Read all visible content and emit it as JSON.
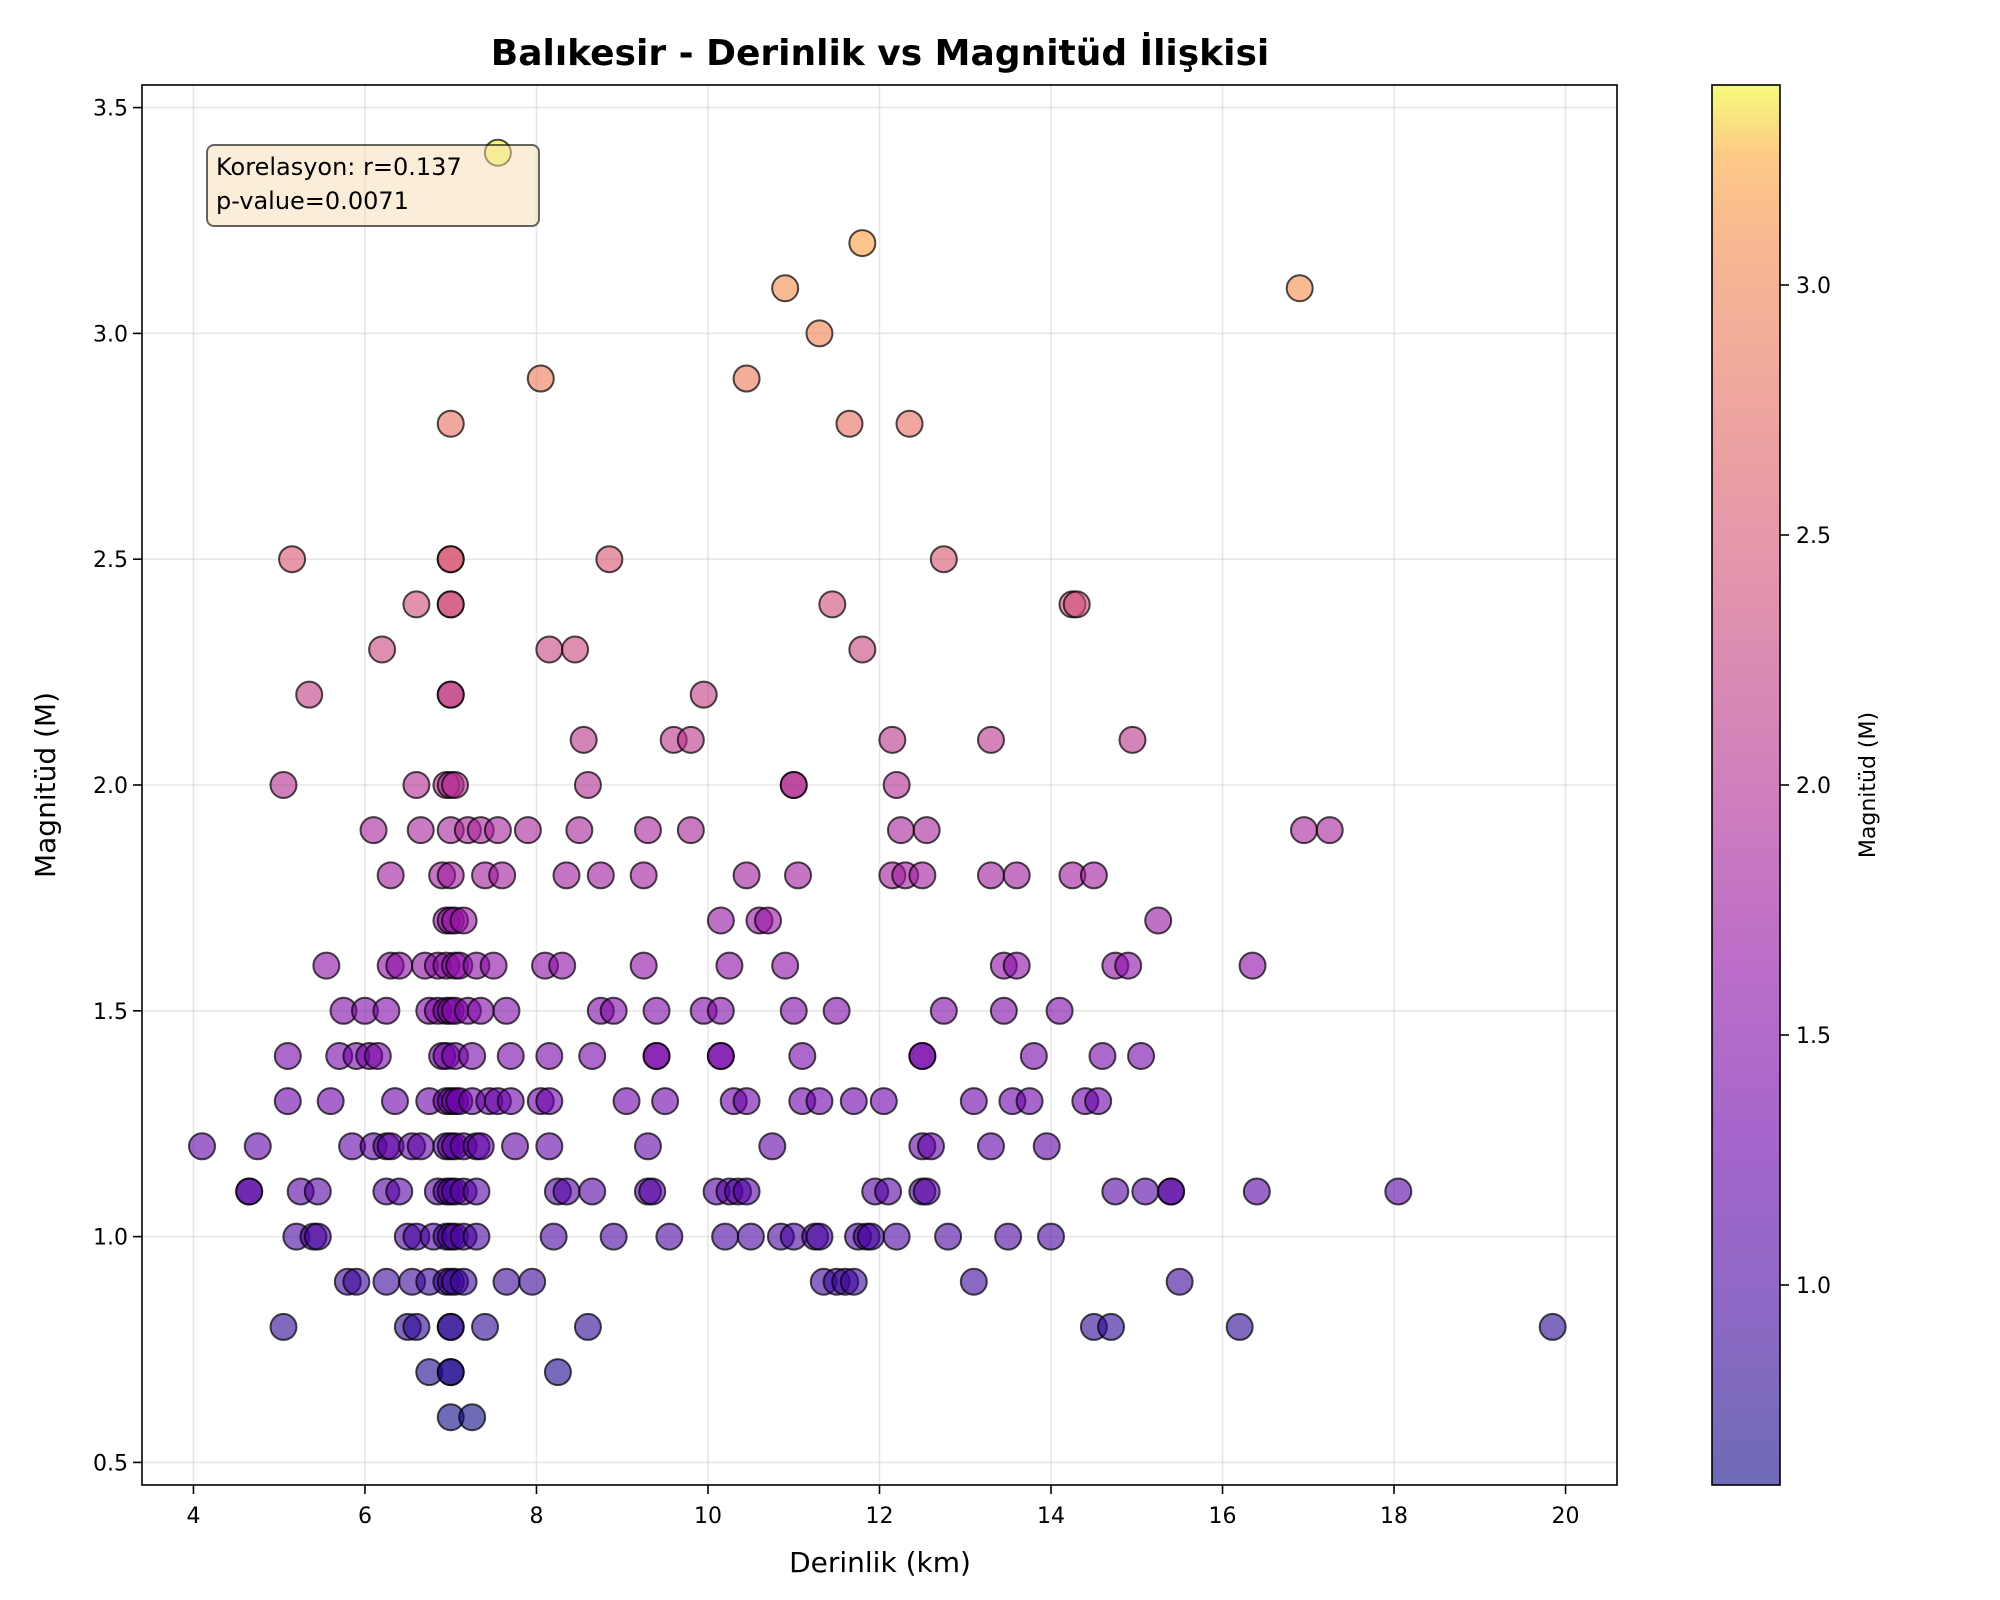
{
  "chart_data": {
    "type": "scatter",
    "title": "Balıkesir - Derinlik vs Magnitüd İlişkisi",
    "xlabel": "Derinlik (km)",
    "ylabel": "Magnitüd (M)",
    "xlim": [
      3.4,
      20.6
    ],
    "ylim": [
      0.45,
      3.55
    ],
    "xticks": [
      "4",
      "6",
      "8",
      "10",
      "12",
      "14",
      "16",
      "18",
      "20"
    ],
    "yticks": [
      "0.5",
      "1.0",
      "1.5",
      "2.0",
      "2.5",
      "3.0",
      "3.5"
    ],
    "grid": true,
    "annotation": [
      "Korelasyon: r=0.137",
      "p-value=0.0071"
    ],
    "annotation_position": "top-left",
    "colorbar": {
      "label": "Magnitüd (M)",
      "colormap": "plasma",
      "range": [
        0.6,
        3.4
      ],
      "ticks": [
        "1.0",
        "1.5",
        "2.0",
        "2.5",
        "3.0"
      ]
    },
    "marker_edge_color": "#000000",
    "marker_alpha": 0.6,
    "points": [
      [
        7.55,
        3.4
      ],
      [
        11.8,
        3.2
      ],
      [
        10.9,
        3.1
      ],
      [
        16.9,
        3.1
      ],
      [
        11.3,
        3.0
      ],
      [
        8.05,
        2.9
      ],
      [
        10.45,
        2.9
      ],
      [
        7.0,
        2.8
      ],
      [
        11.65,
        2.8
      ],
      [
        12.35,
        2.8
      ],
      [
        5.15,
        2.5
      ],
      [
        7.0,
        2.5
      ],
      [
        7.0,
        2.5
      ],
      [
        8.85,
        2.5
      ],
      [
        12.75,
        2.5
      ],
      [
        6.6,
        2.4
      ],
      [
        7.0,
        2.4
      ],
      [
        7.0,
        2.4
      ],
      [
        11.45,
        2.4
      ],
      [
        14.25,
        2.4
      ],
      [
        14.3,
        2.4
      ],
      [
        6.2,
        2.3
      ],
      [
        8.15,
        2.3
      ],
      [
        8.45,
        2.3
      ],
      [
        11.8,
        2.3
      ],
      [
        5.35,
        2.2
      ],
      [
        7.0,
        2.2
      ],
      [
        7.0,
        2.2
      ],
      [
        9.95,
        2.2
      ],
      [
        8.55,
        2.1
      ],
      [
        9.6,
        2.1
      ],
      [
        9.8,
        2.1
      ],
      [
        12.15,
        2.1
      ],
      [
        13.3,
        2.1
      ],
      [
        14.95,
        2.1
      ],
      [
        5.05,
        2.0
      ],
      [
        6.6,
        2.0
      ],
      [
        6.95,
        2.0
      ],
      [
        7.0,
        2.0
      ],
      [
        7.05,
        2.0
      ],
      [
        8.6,
        2.0
      ],
      [
        11.0,
        2.0
      ],
      [
        11.0,
        2.0
      ],
      [
        12.2,
        2.0
      ],
      [
        6.1,
        1.9
      ],
      [
        6.65,
        1.9
      ],
      [
        7.0,
        1.9
      ],
      [
        7.2,
        1.9
      ],
      [
        7.35,
        1.9
      ],
      [
        7.55,
        1.9
      ],
      [
        7.9,
        1.9
      ],
      [
        8.5,
        1.9
      ],
      [
        9.3,
        1.9
      ],
      [
        9.8,
        1.9
      ],
      [
        12.25,
        1.9
      ],
      [
        12.55,
        1.9
      ],
      [
        16.95,
        1.9
      ],
      [
        17.25,
        1.9
      ],
      [
        6.3,
        1.8
      ],
      [
        6.9,
        1.8
      ],
      [
        7.0,
        1.8
      ],
      [
        7.4,
        1.8
      ],
      [
        7.6,
        1.8
      ],
      [
        8.35,
        1.8
      ],
      [
        8.75,
        1.8
      ],
      [
        9.25,
        1.8
      ],
      [
        10.45,
        1.8
      ],
      [
        11.05,
        1.8
      ],
      [
        12.15,
        1.8
      ],
      [
        12.3,
        1.8
      ],
      [
        12.5,
        1.8
      ],
      [
        13.3,
        1.8
      ],
      [
        13.6,
        1.8
      ],
      [
        14.25,
        1.8
      ],
      [
        14.5,
        1.8
      ],
      [
        6.95,
        1.7
      ],
      [
        7.0,
        1.7
      ],
      [
        7.05,
        1.7
      ],
      [
        7.15,
        1.7
      ],
      [
        10.15,
        1.7
      ],
      [
        10.6,
        1.7
      ],
      [
        10.7,
        1.7
      ],
      [
        15.25,
        1.7
      ],
      [
        5.55,
        1.6
      ],
      [
        6.3,
        1.6
      ],
      [
        6.4,
        1.6
      ],
      [
        6.7,
        1.6
      ],
      [
        6.85,
        1.6
      ],
      [
        6.95,
        1.6
      ],
      [
        7.05,
        1.6
      ],
      [
        7.1,
        1.6
      ],
      [
        7.3,
        1.6
      ],
      [
        7.5,
        1.6
      ],
      [
        8.1,
        1.6
      ],
      [
        8.3,
        1.6
      ],
      [
        9.25,
        1.6
      ],
      [
        10.25,
        1.6
      ],
      [
        10.9,
        1.6
      ],
      [
        13.45,
        1.6
      ],
      [
        13.6,
        1.6
      ],
      [
        14.75,
        1.6
      ],
      [
        14.9,
        1.6
      ],
      [
        16.35,
        1.6
      ],
      [
        5.75,
        1.5
      ],
      [
        6.0,
        1.5
      ],
      [
        6.25,
        1.5
      ],
      [
        6.75,
        1.5
      ],
      [
        6.85,
        1.5
      ],
      [
        6.95,
        1.5
      ],
      [
        7.0,
        1.5
      ],
      [
        7.05,
        1.5
      ],
      [
        7.2,
        1.5
      ],
      [
        7.35,
        1.5
      ],
      [
        7.65,
        1.5
      ],
      [
        8.75,
        1.5
      ],
      [
        8.9,
        1.5
      ],
      [
        9.4,
        1.5
      ],
      [
        9.95,
        1.5
      ],
      [
        10.15,
        1.5
      ],
      [
        11.0,
        1.5
      ],
      [
        11.5,
        1.5
      ],
      [
        12.75,
        1.5
      ],
      [
        13.45,
        1.5
      ],
      [
        14.1,
        1.5
      ],
      [
        5.1,
        1.4
      ],
      [
        5.7,
        1.4
      ],
      [
        5.9,
        1.4
      ],
      [
        6.05,
        1.4
      ],
      [
        6.15,
        1.4
      ],
      [
        6.9,
        1.4
      ],
      [
        6.95,
        1.4
      ],
      [
        7.05,
        1.4
      ],
      [
        7.25,
        1.4
      ],
      [
        7.7,
        1.4
      ],
      [
        8.15,
        1.4
      ],
      [
        8.65,
        1.4
      ],
      [
        9.4,
        1.4
      ],
      [
        9.4,
        1.4
      ],
      [
        10.15,
        1.4
      ],
      [
        10.15,
        1.4
      ],
      [
        11.1,
        1.4
      ],
      [
        12.5,
        1.4
      ],
      [
        12.5,
        1.4
      ],
      [
        13.8,
        1.4
      ],
      [
        14.6,
        1.4
      ],
      [
        15.05,
        1.4
      ],
      [
        5.1,
        1.3
      ],
      [
        5.6,
        1.3
      ],
      [
        6.35,
        1.3
      ],
      [
        6.75,
        1.3
      ],
      [
        6.95,
        1.3
      ],
      [
        7.0,
        1.3
      ],
      [
        7.05,
        1.3
      ],
      [
        7.1,
        1.3
      ],
      [
        7.25,
        1.3
      ],
      [
        7.45,
        1.3
      ],
      [
        7.55,
        1.3
      ],
      [
        7.7,
        1.3
      ],
      [
        8.05,
        1.3
      ],
      [
        8.15,
        1.3
      ],
      [
        9.05,
        1.3
      ],
      [
        9.5,
        1.3
      ],
      [
        10.3,
        1.3
      ],
      [
        10.45,
        1.3
      ],
      [
        11.1,
        1.3
      ],
      [
        11.3,
        1.3
      ],
      [
        11.7,
        1.3
      ],
      [
        12.05,
        1.3
      ],
      [
        13.1,
        1.3
      ],
      [
        13.55,
        1.3
      ],
      [
        13.75,
        1.3
      ],
      [
        14.4,
        1.3
      ],
      [
        14.55,
        1.3
      ],
      [
        4.1,
        1.2
      ],
      [
        4.75,
        1.2
      ],
      [
        5.85,
        1.2
      ],
      [
        6.1,
        1.2
      ],
      [
        6.25,
        1.2
      ],
      [
        6.3,
        1.2
      ],
      [
        6.55,
        1.2
      ],
      [
        6.65,
        1.2
      ],
      [
        6.95,
        1.2
      ],
      [
        7.0,
        1.2
      ],
      [
        7.05,
        1.2
      ],
      [
        7.15,
        1.2
      ],
      [
        7.3,
        1.2
      ],
      [
        7.35,
        1.2
      ],
      [
        7.75,
        1.2
      ],
      [
        8.15,
        1.2
      ],
      [
        9.3,
        1.2
      ],
      [
        10.75,
        1.2
      ],
      [
        12.5,
        1.2
      ],
      [
        12.6,
        1.2
      ],
      [
        13.3,
        1.2
      ],
      [
        13.95,
        1.2
      ],
      [
        4.65,
        1.1
      ],
      [
        4.65,
        1.1
      ],
      [
        5.25,
        1.1
      ],
      [
        5.45,
        1.1
      ],
      [
        6.25,
        1.1
      ],
      [
        6.4,
        1.1
      ],
      [
        6.85,
        1.1
      ],
      [
        6.95,
        1.1
      ],
      [
        7.0,
        1.1
      ],
      [
        7.05,
        1.1
      ],
      [
        7.15,
        1.1
      ],
      [
        7.3,
        1.1
      ],
      [
        8.25,
        1.1
      ],
      [
        8.35,
        1.1
      ],
      [
        8.65,
        1.1
      ],
      [
        9.3,
        1.1
      ],
      [
        9.35,
        1.1
      ],
      [
        10.1,
        1.1
      ],
      [
        10.25,
        1.1
      ],
      [
        10.35,
        1.1
      ],
      [
        10.45,
        1.1
      ],
      [
        11.95,
        1.1
      ],
      [
        12.1,
        1.1
      ],
      [
        12.5,
        1.1
      ],
      [
        12.55,
        1.1
      ],
      [
        14.75,
        1.1
      ],
      [
        15.1,
        1.1
      ],
      [
        15.4,
        1.1
      ],
      [
        15.4,
        1.1
      ],
      [
        16.4,
        1.1
      ],
      [
        18.05,
        1.1
      ],
      [
        5.2,
        1.0
      ],
      [
        5.4,
        1.0
      ],
      [
        5.45,
        1.0
      ],
      [
        6.5,
        1.0
      ],
      [
        6.6,
        1.0
      ],
      [
        6.8,
        1.0
      ],
      [
        6.95,
        1.0
      ],
      [
        7.0,
        1.0
      ],
      [
        7.05,
        1.0
      ],
      [
        7.15,
        1.0
      ],
      [
        7.3,
        1.0
      ],
      [
        8.2,
        1.0
      ],
      [
        8.9,
        1.0
      ],
      [
        9.55,
        1.0
      ],
      [
        10.2,
        1.0
      ],
      [
        10.5,
        1.0
      ],
      [
        10.85,
        1.0
      ],
      [
        11.0,
        1.0
      ],
      [
        11.25,
        1.0
      ],
      [
        11.3,
        1.0
      ],
      [
        11.75,
        1.0
      ],
      [
        11.85,
        1.0
      ],
      [
        11.9,
        1.0
      ],
      [
        12.2,
        1.0
      ],
      [
        12.8,
        1.0
      ],
      [
        13.5,
        1.0
      ],
      [
        14.0,
        1.0
      ],
      [
        5.8,
        0.9
      ],
      [
        5.9,
        0.9
      ],
      [
        6.25,
        0.9
      ],
      [
        6.55,
        0.9
      ],
      [
        6.75,
        0.9
      ],
      [
        6.95,
        0.9
      ],
      [
        7.0,
        0.9
      ],
      [
        7.05,
        0.9
      ],
      [
        7.15,
        0.9
      ],
      [
        7.65,
        0.9
      ],
      [
        7.95,
        0.9
      ],
      [
        11.35,
        0.9
      ],
      [
        11.5,
        0.9
      ],
      [
        11.6,
        0.9
      ],
      [
        11.7,
        0.9
      ],
      [
        13.1,
        0.9
      ],
      [
        15.5,
        0.9
      ],
      [
        5.05,
        0.8
      ],
      [
        6.5,
        0.8
      ],
      [
        6.6,
        0.8
      ],
      [
        7.0,
        0.8
      ],
      [
        7.0,
        0.8
      ],
      [
        7.4,
        0.8
      ],
      [
        8.6,
        0.8
      ],
      [
        14.5,
        0.8
      ],
      [
        14.7,
        0.8
      ],
      [
        16.2,
        0.8
      ],
      [
        19.85,
        0.8
      ],
      [
        6.75,
        0.7
      ],
      [
        7.0,
        0.7
      ],
      [
        7.0,
        0.7
      ],
      [
        8.25,
        0.7
      ],
      [
        7.0,
        0.6
      ],
      [
        7.25,
        0.6
      ]
    ]
  }
}
